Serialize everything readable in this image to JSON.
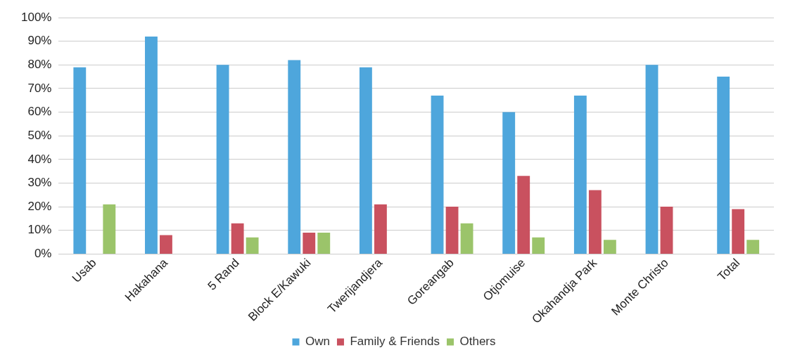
{
  "chart_data": {
    "type": "bar",
    "categories": [
      "Usab",
      "Hakahana",
      "5 Rand",
      "Block E/Kawuki",
      "Twerijandjera",
      "Goreangab",
      "Otjomuise",
      "Okahandja Park",
      "Monte Christo",
      "Total"
    ],
    "series": [
      {
        "name": "Own",
        "color": "#4ea6dc",
        "values": [
          79,
          92,
          80,
          82,
          79,
          67,
          60,
          67,
          80,
          75
        ]
      },
      {
        "name": "Family & Friends",
        "color": "#c9515f",
        "values": [
          0,
          8,
          13,
          9,
          21,
          20,
          33,
          27,
          20,
          19
        ]
      },
      {
        "name": "Others",
        "color": "#9bc46a",
        "values": [
          21,
          0,
          7,
          9,
          0,
          13,
          7,
          6,
          0,
          6
        ]
      }
    ],
    "ylim": [
      0,
      100
    ],
    "yticks": [
      {
        "value": 0,
        "label": "0%"
      },
      {
        "value": 10,
        "label": "10%"
      },
      {
        "value": 20,
        "label": "20%"
      },
      {
        "value": 30,
        "label": "30%"
      },
      {
        "value": 40,
        "label": "40%"
      },
      {
        "value": 50,
        "label": "50%"
      },
      {
        "value": 60,
        "label": "60%"
      },
      {
        "value": 70,
        "label": "70%"
      },
      {
        "value": 80,
        "label": "80%"
      },
      {
        "value": 90,
        "label": "90%"
      },
      {
        "value": 100,
        "label": "100%"
      }
    ],
    "grid": "y",
    "legend": "bottom"
  }
}
